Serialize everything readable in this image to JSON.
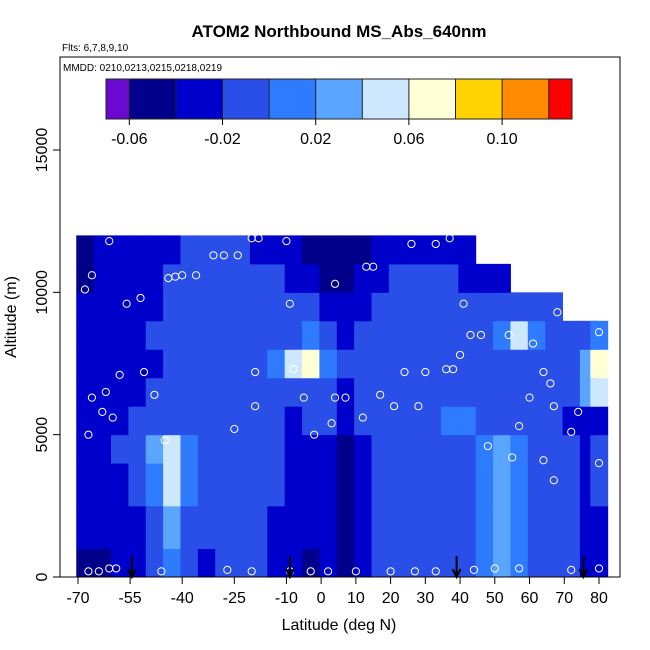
{
  "title": "ATOM2 Northbound MS_Abs_640nm",
  "flights_label": "Flts: 6,7,8,9,10",
  "mmdd_label": "MMDD: 0210,0213,0215,0218,0219",
  "chart_data": {
    "type": "heatmap",
    "title": "ATOM2 Northbound MS_Abs_640nm",
    "xlabel": "Latitude (deg N)",
    "ylabel": "Altitude (m)",
    "xlim": [
      -70,
      85
    ],
    "ylim": [
      0,
      17000
    ],
    "x_ticks": [
      -70,
      -55,
      -40,
      -25,
      -10,
      0,
      10,
      20,
      30,
      40,
      50,
      60,
      70,
      80
    ],
    "x_tick_labels": [
      "-70",
      "-55",
      "-40",
      "-25",
      "-10",
      "0",
      "10",
      "20",
      "30",
      "40",
      "50",
      "60",
      "70",
      "80"
    ],
    "y_ticks": [
      0,
      5000,
      10000,
      15000
    ],
    "y_tick_labels": [
      "0",
      "5000",
      "10000",
      "15000"
    ],
    "colorbar": {
      "range": [
        -0.07,
        0.13
      ],
      "boundaries": [
        -0.07,
        -0.06,
        -0.04,
        -0.02,
        0.0,
        0.02,
        0.04,
        0.06,
        0.08,
        0.1,
        0.12,
        0.13
      ],
      "tick_values": [
        -0.06,
        -0.02,
        0.02,
        0.06,
        0.1
      ],
      "tick_labels": [
        "-0.06",
        "-0.02",
        "0.02",
        "0.06",
        "0.10"
      ],
      "colors": [
        "#6a0ad0",
        "#00008b",
        "#0000cd",
        "#2a4fe8",
        "#2f7bff",
        "#5aa5ff",
        "#cde7ff",
        "#ffffd6",
        "#ffd200",
        "#ff8c00",
        "#ff0000",
        "#a51a1a"
      ]
    },
    "field": {
      "x": [
        -68,
        -63,
        -58,
        -53,
        -48,
        -43,
        -38,
        -33,
        -28,
        -23,
        -18,
        -13,
        -8,
        -3,
        2,
        7,
        12,
        17,
        22,
        27,
        32,
        37,
        42,
        47,
        52,
        57,
        62,
        67,
        72,
        77,
        80
      ],
      "altitude_bands": [
        {
          "alt": [
            0,
            1000
          ],
          "values": [
            -0.05,
            -0.05,
            -0.04,
            -0.03,
            -0.02,
            0.0,
            -0.02,
            -0.03,
            -0.02,
            -0.01,
            -0.02,
            -0.03,
            -0.04,
            -0.05,
            -0.03,
            -0.06,
            -0.03,
            -0.02,
            -0.01,
            -0.02,
            -0.02,
            -0.02,
            -0.01,
            0.0,
            0.02,
            0.0,
            -0.01,
            -0.02,
            -0.02,
            -0.04,
            -0.03
          ]
        },
        {
          "alt": [
            1000,
            2500
          ],
          "values": [
            -0.04,
            -0.04,
            -0.03,
            -0.03,
            -0.01,
            0.02,
            -0.01,
            -0.02,
            -0.02,
            -0.01,
            -0.02,
            -0.03,
            -0.04,
            -0.04,
            -0.03,
            -0.05,
            -0.03,
            -0.02,
            -0.01,
            -0.02,
            -0.02,
            -0.02,
            -0.01,
            0.0,
            0.03,
            0.01,
            -0.01,
            -0.02,
            -0.02,
            -0.03,
            -0.03
          ]
        },
        {
          "alt": [
            2500,
            4000
          ],
          "values": [
            -0.04,
            -0.04,
            -0.03,
            -0.02,
            0.0,
            0.04,
            0.0,
            -0.02,
            -0.02,
            -0.01,
            -0.02,
            -0.02,
            -0.03,
            -0.03,
            -0.03,
            -0.05,
            -0.03,
            -0.02,
            -0.02,
            -0.02,
            -0.02,
            -0.02,
            -0.01,
            0.0,
            0.03,
            0.01,
            -0.01,
            -0.02,
            -0.02,
            -0.03,
            -0.02
          ]
        },
        {
          "alt": [
            4000,
            5000
          ],
          "values": [
            -0.04,
            -0.03,
            -0.02,
            -0.01,
            0.02,
            0.05,
            0.01,
            -0.02,
            -0.02,
            -0.02,
            -0.02,
            -0.02,
            -0.03,
            -0.03,
            -0.03,
            -0.05,
            -0.03,
            -0.02,
            -0.02,
            -0.02,
            -0.02,
            -0.02,
            -0.01,
            0.0,
            0.02,
            0.0,
            -0.01,
            -0.01,
            -0.02,
            -0.03,
            -0.02
          ]
        },
        {
          "alt": [
            5000,
            6000
          ],
          "values": [
            -0.04,
            -0.03,
            -0.03,
            -0.02,
            -0.02,
            -0.02,
            -0.02,
            -0.02,
            -0.02,
            -0.02,
            -0.02,
            -0.02,
            -0.03,
            -0.02,
            -0.02,
            -0.04,
            -0.02,
            -0.02,
            -0.02,
            -0.02,
            -0.02,
            0.0,
            0.0,
            -0.01,
            -0.01,
            -0.02,
            -0.02,
            -0.02,
            -0.03,
            -0.03,
            -0.03
          ]
        },
        {
          "alt": [
            6000,
            7000
          ],
          "values": [
            -0.04,
            -0.03,
            -0.03,
            -0.03,
            -0.02,
            -0.02,
            -0.02,
            -0.02,
            -0.02,
            -0.02,
            -0.02,
            -0.02,
            -0.02,
            -0.01,
            -0.02,
            -0.03,
            -0.02,
            -0.02,
            -0.02,
            -0.02,
            -0.02,
            -0.02,
            -0.02,
            -0.02,
            -0.02,
            -0.02,
            -0.02,
            -0.01,
            -0.02,
            0.02,
            0.04
          ]
        },
        {
          "alt": [
            7000,
            8000
          ],
          "values": [
            -0.04,
            -0.03,
            -0.03,
            -0.03,
            -0.03,
            -0.02,
            -0.02,
            -0.02,
            -0.02,
            -0.01,
            -0.01,
            0.0,
            0.04,
            0.06,
            0.01,
            -0.02,
            -0.02,
            -0.02,
            -0.02,
            -0.02,
            -0.02,
            -0.02,
            -0.02,
            -0.02,
            -0.02,
            -0.01,
            -0.02,
            -0.02,
            -0.01,
            0.02,
            0.06
          ]
        },
        {
          "alt": [
            8000,
            9000
          ],
          "values": [
            -0.04,
            -0.03,
            -0.03,
            -0.03,
            -0.02,
            -0.02,
            -0.02,
            -0.02,
            -0.02,
            -0.02,
            -0.02,
            -0.02,
            -0.01,
            0.01,
            -0.01,
            -0.03,
            -0.02,
            -0.02,
            -0.02,
            -0.02,
            -0.02,
            -0.02,
            -0.02,
            -0.02,
            0.0,
            0.04,
            0.0,
            -0.02,
            -0.02,
            -0.01,
            0.0
          ]
        },
        {
          "alt": [
            9000,
            10000
          ],
          "values": [
            -0.04,
            -0.03,
            -0.03,
            -0.03,
            -0.03,
            -0.02,
            -0.02,
            -0.02,
            -0.02,
            -0.02,
            -0.02,
            -0.02,
            -0.02,
            -0.02,
            -0.03,
            -0.04,
            -0.03,
            -0.02,
            -0.02,
            -0.02,
            -0.02,
            -0.02,
            -0.02,
            -0.02,
            -0.02,
            -0.02,
            -0.02,
            -0.02
          ]
        },
        {
          "alt": [
            10000,
            11000
          ],
          "values": [
            -0.05,
            -0.04,
            -0.03,
            -0.03,
            -0.03,
            -0.02,
            -0.02,
            -0.02,
            -0.02,
            -0.02,
            -0.02,
            -0.02,
            -0.03,
            -0.04,
            -0.05,
            -0.06,
            -0.04,
            -0.03,
            -0.02,
            -0.02,
            -0.02,
            -0.02,
            -0.03,
            -0.04,
            -0.04
          ]
        },
        {
          "alt": [
            11000,
            12000
          ],
          "values": [
            -0.05,
            -0.04,
            -0.04,
            -0.03,
            -0.03,
            -0.03,
            -0.02,
            -0.02,
            -0.02,
            -0.02,
            -0.03,
            -0.03,
            -0.04,
            -0.05,
            -0.05,
            -0.06,
            -0.05,
            -0.04,
            -0.03,
            -0.03,
            -0.03,
            -0.03,
            -0.04
          ]
        }
      ]
    },
    "points": [
      {
        "lat": -67,
        "alt": 200
      },
      {
        "lat": -64,
        "alt": 200
      },
      {
        "lat": -61,
        "alt": 300
      },
      {
        "lat": -59,
        "alt": 300
      },
      {
        "lat": -46,
        "alt": 200
      },
      {
        "lat": -27,
        "alt": 250
      },
      {
        "lat": -20,
        "alt": 200
      },
      {
        "lat": -9,
        "alt": 200
      },
      {
        "lat": -3,
        "alt": 200
      },
      {
        "lat": 2,
        "alt": 200
      },
      {
        "lat": 10,
        "alt": 200
      },
      {
        "lat": 20,
        "alt": 200
      },
      {
        "lat": 27,
        "alt": 200
      },
      {
        "lat": 33,
        "alt": 200
      },
      {
        "lat": 44,
        "alt": 250
      },
      {
        "lat": 50,
        "alt": 300
      },
      {
        "lat": 57,
        "alt": 300
      },
      {
        "lat": 72,
        "alt": 250
      },
      {
        "lat": 80,
        "alt": 300
      },
      {
        "lat": -45,
        "alt": 4800
      },
      {
        "lat": -25,
        "alt": 5200
      },
      {
        "lat": -2,
        "alt": 5000
      },
      {
        "lat": 3,
        "alt": 5400
      },
      {
        "lat": 12,
        "alt": 5600
      },
      {
        "lat": 48,
        "alt": 4600
      },
      {
        "lat": 55,
        "alt": 4200
      },
      {
        "lat": 64,
        "alt": 4100
      },
      {
        "lat": 67,
        "alt": 3400
      },
      {
        "lat": 80,
        "alt": 4000
      },
      {
        "lat": 57,
        "alt": 5300
      },
      {
        "lat": 72,
        "alt": 5100
      },
      {
        "lat": -67,
        "alt": 5000
      },
      {
        "lat": -63,
        "alt": 5800
      },
      {
        "lat": -60,
        "alt": 5600
      },
      {
        "lat": -66,
        "alt": 6300
      },
      {
        "lat": -62,
        "alt": 6500
      },
      {
        "lat": -48,
        "alt": 6400
      },
      {
        "lat": -19,
        "alt": 6000
      },
      {
        "lat": -5,
        "alt": 6300
      },
      {
        "lat": 4,
        "alt": 6300
      },
      {
        "lat": 7,
        "alt": 6300
      },
      {
        "lat": 17,
        "alt": 6400
      },
      {
        "lat": 21,
        "alt": 6000
      },
      {
        "lat": 28,
        "alt": 6000
      },
      {
        "lat": 60,
        "alt": 6300
      },
      {
        "lat": 66,
        "alt": 6800
      },
      {
        "lat": 67,
        "alt": 6000
      },
      {
        "lat": 74,
        "alt": 5800
      },
      {
        "lat": -58,
        "alt": 7100
      },
      {
        "lat": -51,
        "alt": 7200
      },
      {
        "lat": -19,
        "alt": 7200
      },
      {
        "lat": -8,
        "alt": 7300
      },
      {
        "lat": 24,
        "alt": 7200
      },
      {
        "lat": 30,
        "alt": 7200
      },
      {
        "lat": 36,
        "alt": 7300
      },
      {
        "lat": 38,
        "alt": 7300
      },
      {
        "lat": 64,
        "alt": 7200
      },
      {
        "lat": -56,
        "alt": 9600
      },
      {
        "lat": -52,
        "alt": 9800
      },
      {
        "lat": -44,
        "alt": 10500
      },
      {
        "lat": -42,
        "alt": 10550
      },
      {
        "lat": -40,
        "alt": 10600
      },
      {
        "lat": -36,
        "alt": 10600
      },
      {
        "lat": -31,
        "alt": 11300
      },
      {
        "lat": -28,
        "alt": 11300
      },
      {
        "lat": -24,
        "alt": 11300
      },
      {
        "lat": -68,
        "alt": 10100
      },
      {
        "lat": -66,
        "alt": 10600
      },
      {
        "lat": -61,
        "alt": 11800
      },
      {
        "lat": -20,
        "alt": 11900
      },
      {
        "lat": -18,
        "alt": 11900
      },
      {
        "lat": -10,
        "alt": 11800
      },
      {
        "lat": 4,
        "alt": 10300
      },
      {
        "lat": 13,
        "alt": 10900
      },
      {
        "lat": 15,
        "alt": 10900
      },
      {
        "lat": 26,
        "alt": 11700
      },
      {
        "lat": 33,
        "alt": 11700
      },
      {
        "lat": 37,
        "alt": 11900
      },
      {
        "lat": -9,
        "alt": 9600
      },
      {
        "lat": 41,
        "alt": 9600
      },
      {
        "lat": 40,
        "alt": 7800
      },
      {
        "lat": 43,
        "alt": 8500
      },
      {
        "lat": 46,
        "alt": 8500
      },
      {
        "lat": 54,
        "alt": 8500
      },
      {
        "lat": 61,
        "alt": 8200
      },
      {
        "lat": 68,
        "alt": 9300
      },
      {
        "lat": 72,
        "alt": 9300
      },
      {
        "lat": 80,
        "alt": 8600
      }
    ],
    "arrows": [
      -54.5,
      -9,
      39,
      75.5
    ]
  }
}
